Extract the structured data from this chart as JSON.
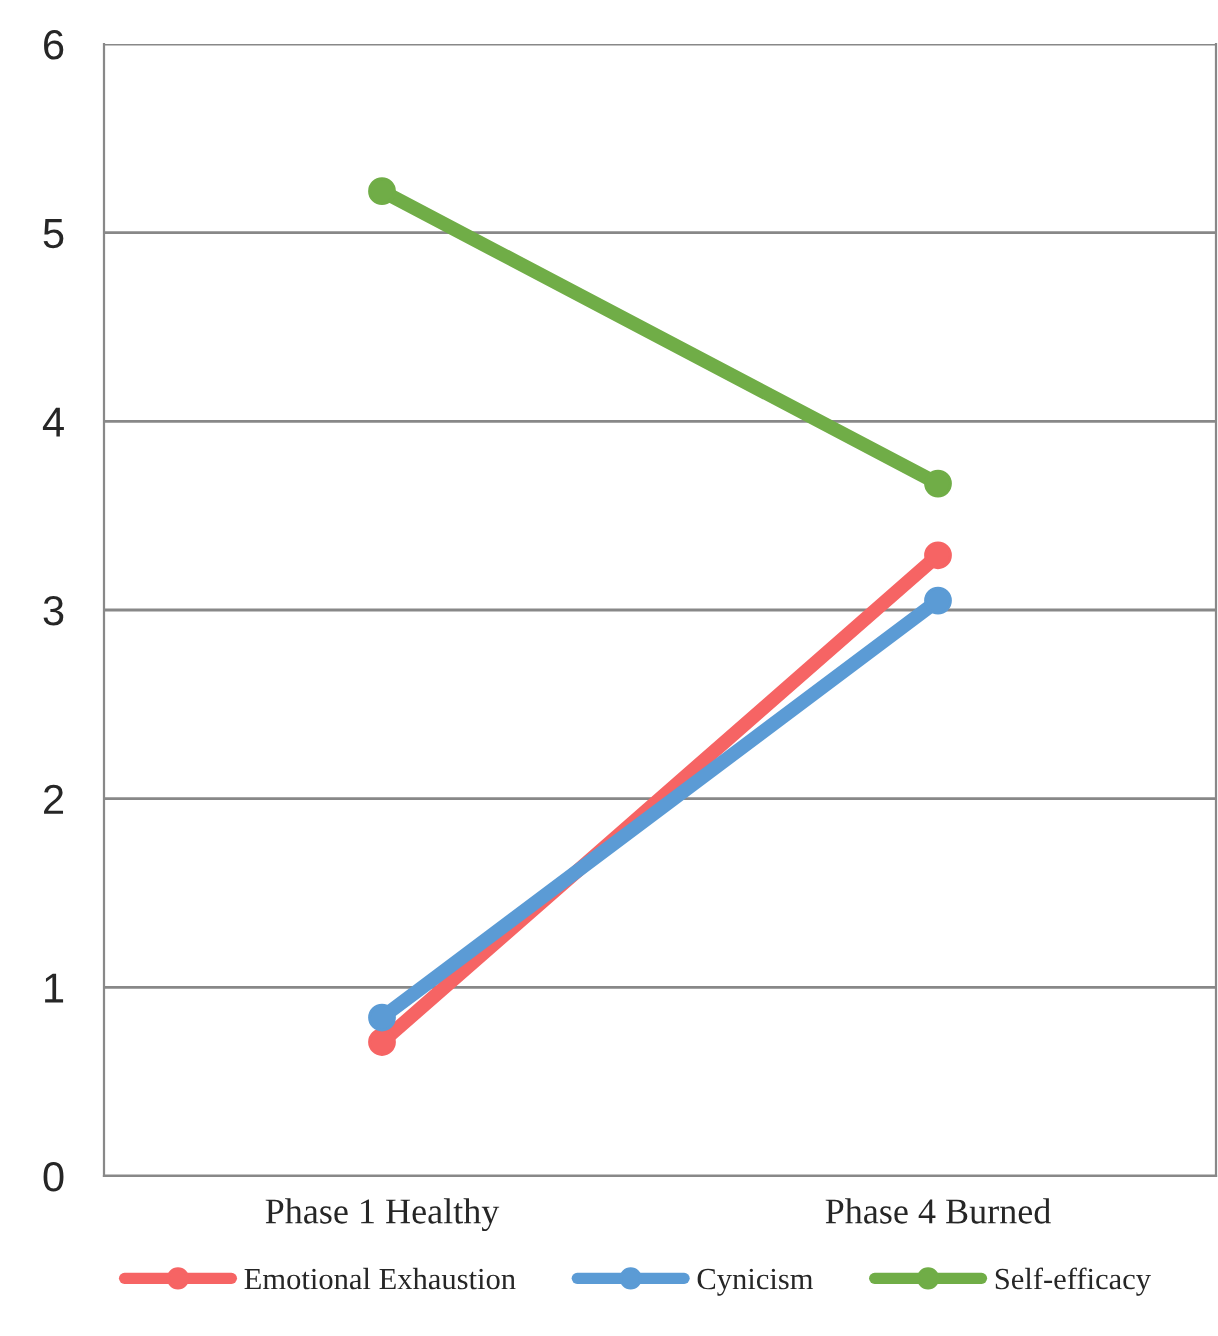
{
  "chart_data": {
    "type": "line",
    "categories": [
      "Phase 1 Healthy",
      "Phase 4 Burned"
    ],
    "series": [
      {
        "name": "Emotional Exhaustion",
        "color": "#f66464",
        "values": [
          0.71,
          3.29
        ]
      },
      {
        "name": "Cynicism",
        "color": "#5b9bd5",
        "values": [
          0.84,
          3.05
        ]
      },
      {
        "name": "Self-efficacy",
        "color": "#70ad47",
        "values": [
          5.22,
          3.67
        ]
      }
    ],
    "ylim": [
      0,
      6
    ],
    "yticks": [
      0,
      1,
      2,
      3,
      4,
      5,
      6
    ],
    "grid": "y",
    "legend": "bottom",
    "marker": "circle",
    "line_style": "solid"
  }
}
